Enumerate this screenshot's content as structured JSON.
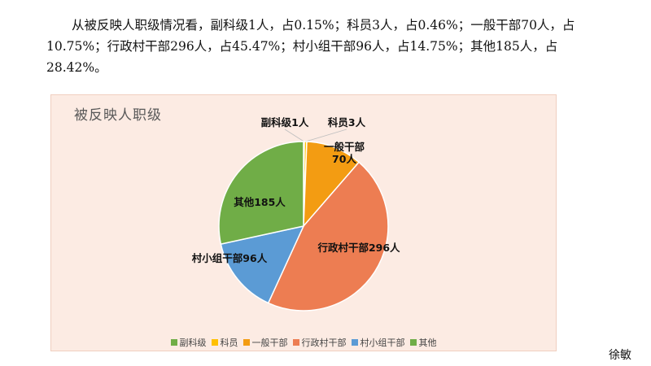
{
  "paragraph": "从被反映人职级情况看，副科级1人，占0.15%；科员3人，占0.46%；一般干部70人，占10.75%；行政村干部296人，占45.47%；村小组干部96人，占14.75%；其他185人，占28.42%。",
  "author": "徐敏",
  "chart_data": {
    "type": "pie",
    "title": "被反映人职级",
    "legend_position": "bottom",
    "start_angle": "top, clockwise",
    "slices": [
      {
        "name": "副科级",
        "value": 1,
        "label": "副科级1人",
        "color": "#70ad47"
      },
      {
        "name": "科员",
        "value": 3,
        "label": "科员3人",
        "color": "#ffc000"
      },
      {
        "name": "一般干部",
        "value": 70,
        "label": "一般干部\n70人",
        "color": "#f39c12"
      },
      {
        "name": "行政村干部",
        "value": 296,
        "label": "行政村干部296人",
        "color": "#ed7d52"
      },
      {
        "name": "村小组干部",
        "value": 96,
        "label": "村小组干部96人",
        "color": "#5b9bd5"
      },
      {
        "name": "其他",
        "value": 185,
        "label": "其他185人",
        "color": "#70ad47"
      }
    ]
  }
}
